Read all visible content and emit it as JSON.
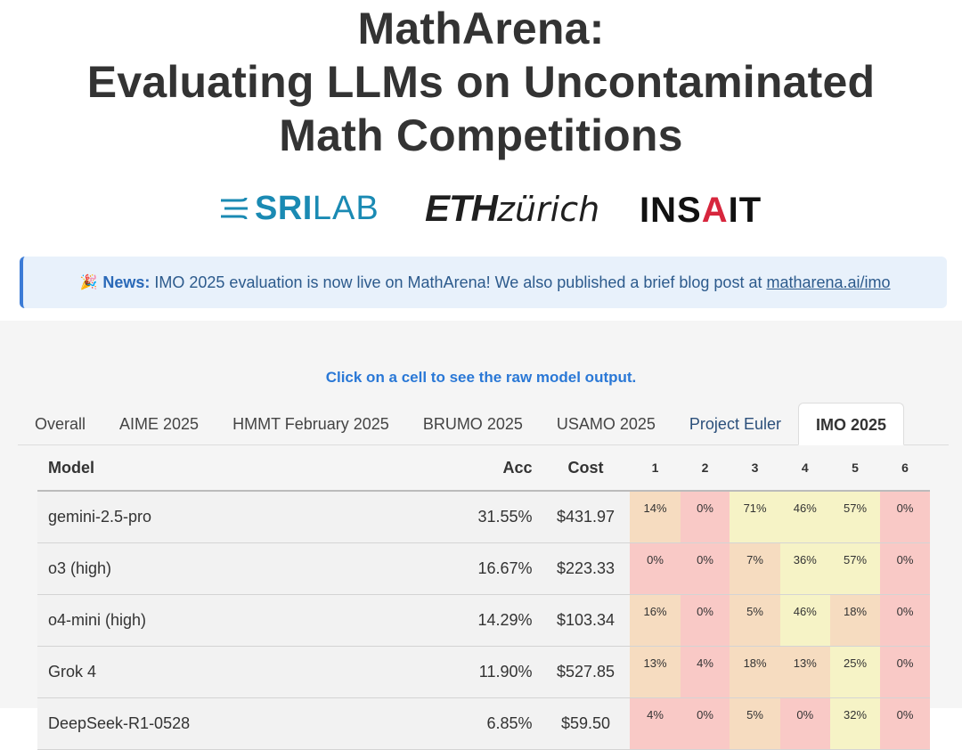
{
  "header": {
    "title_lines": [
      "MathArena:",
      "Evaluating LLMs on Uncontaminated",
      "Math Competitions"
    ]
  },
  "logos": {
    "srilab_sri": "SRI",
    "srilab_lab": "LAB",
    "eth_bold": "ETH",
    "eth_italic": "zürich",
    "insait_pre": "INS",
    "insait_a": "A",
    "insait_post": "IT"
  },
  "news": {
    "icon": "party-popper-icon",
    "label": "News:",
    "text": "IMO 2025 evaluation is now live on MathArena! We also published a brief blog post at",
    "link": "matharena.ai/imo"
  },
  "hint": "Click on a cell to see the raw model output.",
  "tabs": [
    {
      "label": "Overall"
    },
    {
      "label": "AIME 2025"
    },
    {
      "label": "HMMT February 2025"
    },
    {
      "label": "BRUMO 2025"
    },
    {
      "label": "USAMO 2025"
    },
    {
      "label": "Project Euler"
    },
    {
      "label": "IMO 2025",
      "active": true
    }
  ],
  "table": {
    "headers": {
      "model": "Model",
      "acc": "Acc",
      "cost": "Cost",
      "problems": [
        "1",
        "2",
        "3",
        "4",
        "5",
        "6"
      ]
    },
    "rows": [
      {
        "model": "gemini-2.5-pro",
        "acc": "31.55%",
        "cost": "$431.97",
        "scores": [
          "14%",
          "0%",
          "71%",
          "46%",
          "57%",
          "0%"
        ]
      },
      {
        "model": "o3 (high)",
        "acc": "16.67%",
        "cost": "$223.33",
        "scores": [
          "0%",
          "0%",
          "7%",
          "36%",
          "57%",
          "0%"
        ]
      },
      {
        "model": "o4-mini (high)",
        "acc": "14.29%",
        "cost": "$103.34",
        "scores": [
          "16%",
          "0%",
          "5%",
          "46%",
          "18%",
          "0%"
        ]
      },
      {
        "model": "Grok 4",
        "acc": "11.90%",
        "cost": "$527.85",
        "scores": [
          "13%",
          "4%",
          "18%",
          "13%",
          "25%",
          "0%"
        ]
      },
      {
        "model": "DeepSeek-R1-0528",
        "acc": "6.85%",
        "cost": "$59.50",
        "scores": [
          "4%",
          "0%",
          "5%",
          "0%",
          "32%",
          "0%"
        ]
      }
    ]
  },
  "colors": {
    "accent_blue": "#2a78d6",
    "news_bg": "#e8f1fb",
    "score_low": "#f9c9c6",
    "score_mid": "#f6dcc0",
    "score_high": "#f6f3c6"
  }
}
